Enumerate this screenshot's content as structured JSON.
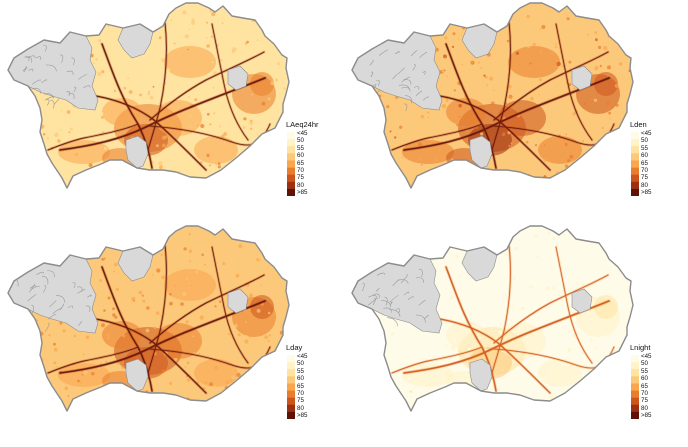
{
  "colors": {
    "background": "#ffffff",
    "no_data_fill": "#d9d9d9",
    "outline": "#8c8c8c",
    "road": "#7a1a06"
  },
  "legend_classes": [
    "<45",
    "50",
    "55",
    "60",
    "65",
    "70",
    "75",
    "80",
    ">85"
  ],
  "legend_colors": [
    "#fffbe9",
    "#fff3c7",
    "#ffe3a0",
    "#fcc87a",
    "#f9a64f",
    "#ea7d2c",
    "#cd551b",
    "#9d3011",
    "#5e1308"
  ],
  "panels": [
    {
      "id": "laeq24hr",
      "legend_title": "LAeq24hr",
      "palette_shift": 0.0
    },
    {
      "id": "lden",
      "legend_title": "Lden",
      "palette_shift": 0.12
    },
    {
      "id": "lday",
      "legend_title": "Lday",
      "palette_shift": 0.05
    },
    {
      "id": "lnight",
      "legend_title": "Lnight",
      "palette_shift": -0.35
    }
  ]
}
